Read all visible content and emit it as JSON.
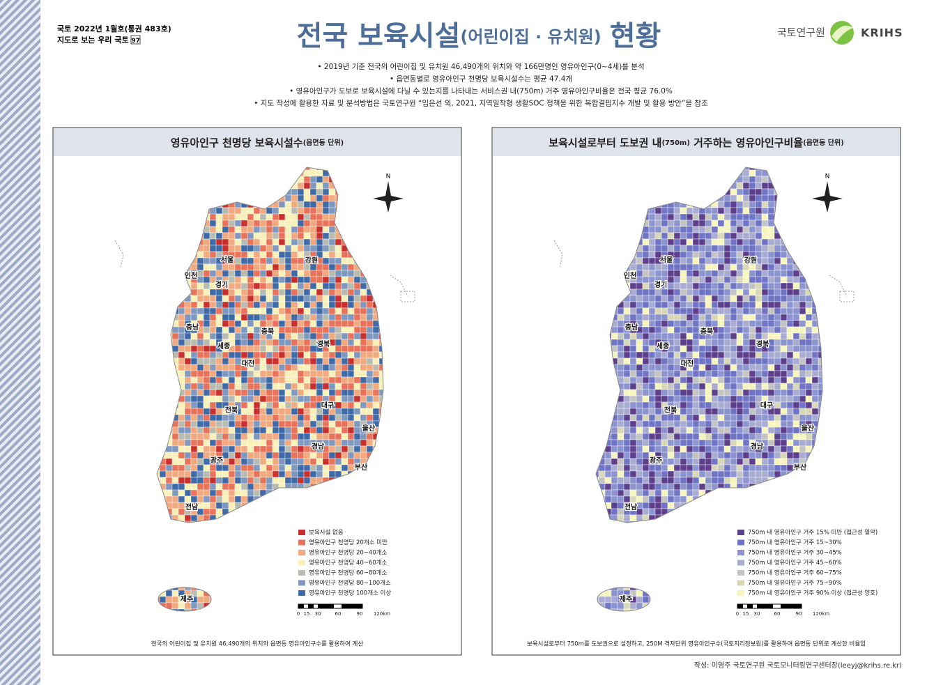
{
  "header": {
    "issue": "국토 2022년 1월호(통권 483호)",
    "series": "지도로 보는 우리 국토",
    "number": "97"
  },
  "title": {
    "main": "전국 보육시설",
    "sub": "(어린이집 · 유치원)",
    "end": "현황"
  },
  "logo": {
    "name": "국토연구원",
    "abbr": "KRIHS"
  },
  "bullets": [
    "• 2019년 기준 전국의 어린이집 및 유치원 46,490개의 위치와 약 166만명인 영유아인구(0~4세)를 분석",
    "• 읍면동별로 영유아인구 천명당 보육시설수는 평균 47.4개",
    "• 영유아인구가 도보로 보육시설에 다닐 수 있는지를 나타내는 서비스권 내(750m) 거주 영유아인구비율은 전국 평균 76.0%",
    "• 지도 작성에 활용한 자료 및 분석방법은 국토연구원 “임은선 외, 2021, 지역밀착형 생활SOC 정책을 위한 복합결핍지수 개발 및 활용 방안”을 참조"
  ],
  "maps": [
    {
      "title": [
        "영유아인구 천명당 보육시설수",
        "(읍면동 단위)"
      ],
      "north": "N",
      "regions": [
        "서울",
        "인천",
        "경기",
        "강원",
        "충남",
        "충북",
        "세종",
        "경북",
        "대전",
        "대구",
        "전북",
        "울산",
        "경남",
        "광주",
        "부산",
        "전남",
        "제주"
      ],
      "legend": [
        {
          "label": "보육시설 없음",
          "color": "#c8302e"
        },
        {
          "label": "영유아인구 천명당 20개소 미만",
          "color": "#e8735a"
        },
        {
          "label": "영유아인구 천명당 20~40개소",
          "color": "#f1a97f"
        },
        {
          "label": "영유아인구 천명당 40~60개소",
          "color": "#f7f0b8"
        },
        {
          "label": "영유아인구 천명당 60~80개소",
          "color": "#b8bcb0"
        },
        {
          "label": "영유아인구 천명당 80~100개소",
          "color": "#7f98c0"
        },
        {
          "label": "영유아인구 천명당 100개소 이상",
          "color": "#3f6aa8"
        }
      ],
      "scale": [
        "0",
        "15",
        "30",
        "60",
        "90",
        "120km"
      ],
      "note": "전국의 어린이집 및 유치원 46,490개의 위치와 읍면동 영유아인구수를 활용하여 계산"
    },
    {
      "title": [
        "보육시설로부터 도보권 내",
        "(750m)",
        " 거주하는 영유아인구비율",
        "(읍면동 단위)"
      ],
      "north": "N",
      "regions": [
        "서울",
        "인천",
        "경기",
        "강원",
        "충남",
        "충북",
        "세종",
        "경북",
        "대전",
        "대구",
        "전북",
        "울산",
        "경남",
        "광주",
        "부산",
        "전남",
        "제주"
      ],
      "legend": [
        {
          "label": "750m 내 영유아인구 거주 15% 미만 (접근성 열악)",
          "color": "#5e3f8c"
        },
        {
          "label": "750m 내 영유아인구 거주 15~30%",
          "color": "#6f74c4"
        },
        {
          "label": "750m 내 영유아인구 거주 30~45%",
          "color": "#8c94d0"
        },
        {
          "label": "750m 내 영유아인구 거주 45~60%",
          "color": "#a8acd0"
        },
        {
          "label": "750m 내 영유아인구 거주 60~75%",
          "color": "#c4c4c4"
        },
        {
          "label": "750m 내 영유아인구 거주 75~90%",
          "color": "#d8d8b8"
        },
        {
          "label": "750m 내 영유아인구 거주 90% 이상 (접근성 양호)",
          "color": "#f6f5c0"
        }
      ],
      "scale": [
        "0",
        "15",
        "30",
        "60",
        "90",
        "120km"
      ],
      "note": "보육시설로부터 750m를 도보권으로 설정하고, 250M 격자단위 영유아인구수(국토지리정보원)를 활용하여 읍면동 단위로 계산한 비율임"
    }
  ],
  "credit": "작성: 이영주 국토연구원 국토모니터링연구센터장(leeyj@krihs.re.kr)"
}
